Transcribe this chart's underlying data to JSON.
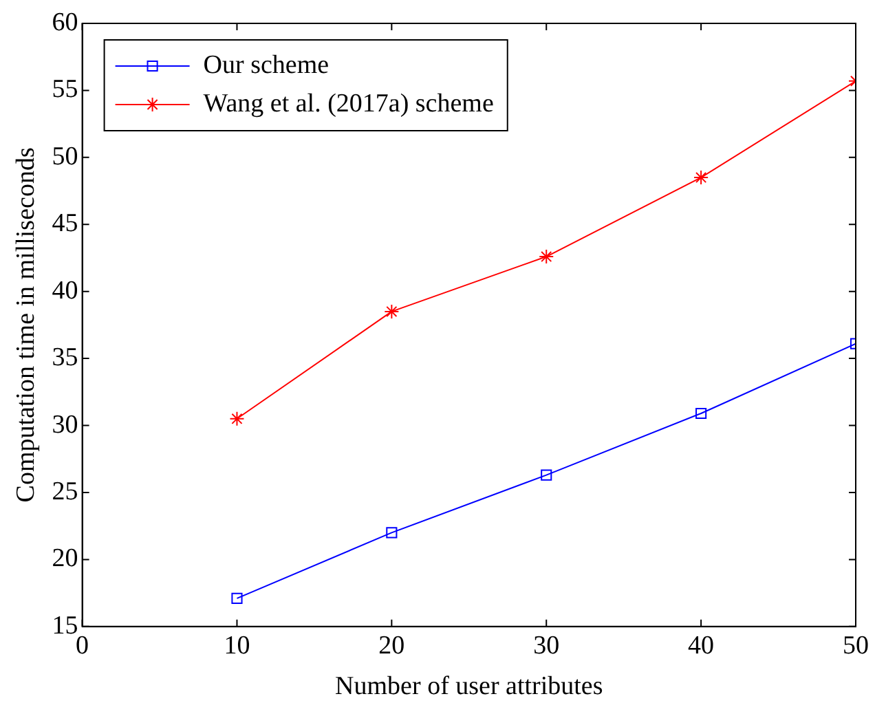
{
  "chart_data": {
    "type": "line",
    "xlabel": "Number of user attributes",
    "ylabel": "Computation time in milliseconds",
    "x": [
      10,
      20,
      30,
      40,
      50
    ],
    "series": [
      {
        "name": "Our scheme",
        "color": "#0000ff",
        "marker": "square",
        "values": [
          17.1,
          22.0,
          26.3,
          30.9,
          36.1
        ]
      },
      {
        "name": "Wang et al. (2017a) scheme",
        "color": "#ff0000",
        "marker": "cross",
        "values": [
          30.5,
          38.5,
          42.6,
          48.5,
          55.7
        ]
      }
    ],
    "xlim": [
      0,
      50
    ],
    "xticks": [
      0,
      10,
      20,
      30,
      40,
      50
    ],
    "ylim": [
      15,
      60
    ],
    "yticks": [
      15,
      20,
      25,
      30,
      35,
      40,
      45,
      50,
      55,
      60
    ],
    "grid": false,
    "legend": "top left",
    "line_style": "solid"
  }
}
